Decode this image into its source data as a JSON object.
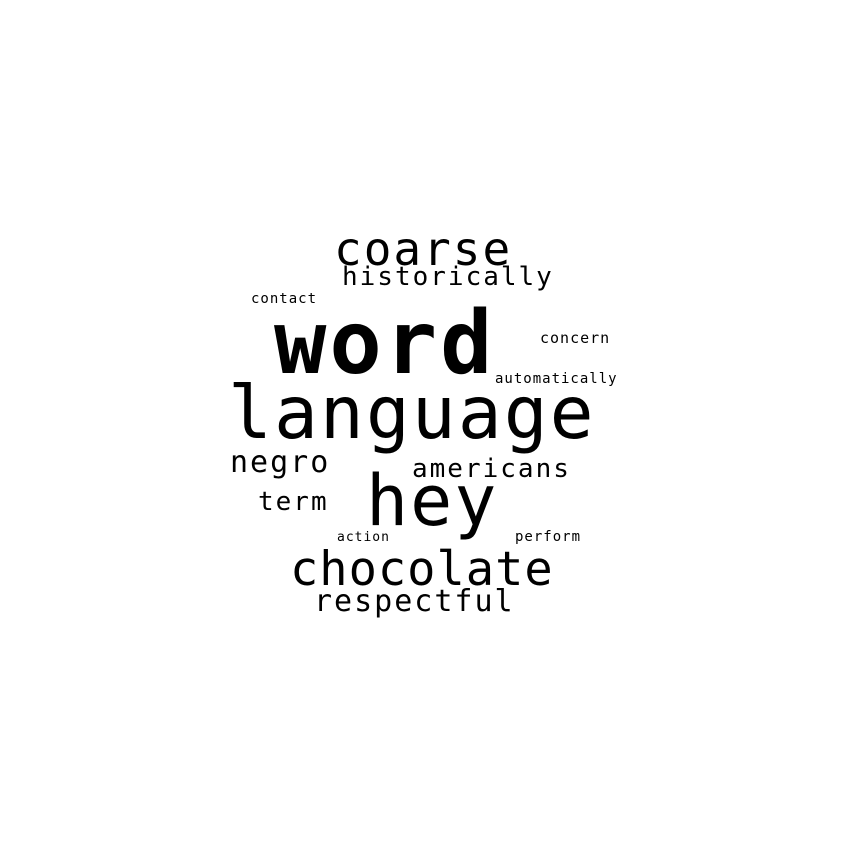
{
  "words": {
    "word": "word",
    "language": "language",
    "hey": "hey",
    "chocolate": "chocolate",
    "coarse": "coarse",
    "historically": "historically",
    "respectful": "respectful",
    "negro": "negro",
    "americans": "americans",
    "term": "term",
    "contact": "contact",
    "concern": "concern",
    "automatically": "automatically",
    "action": "action",
    "perform": "perform"
  },
  "colors": {
    "background": "#ffffff",
    "text": "#000000"
  }
}
